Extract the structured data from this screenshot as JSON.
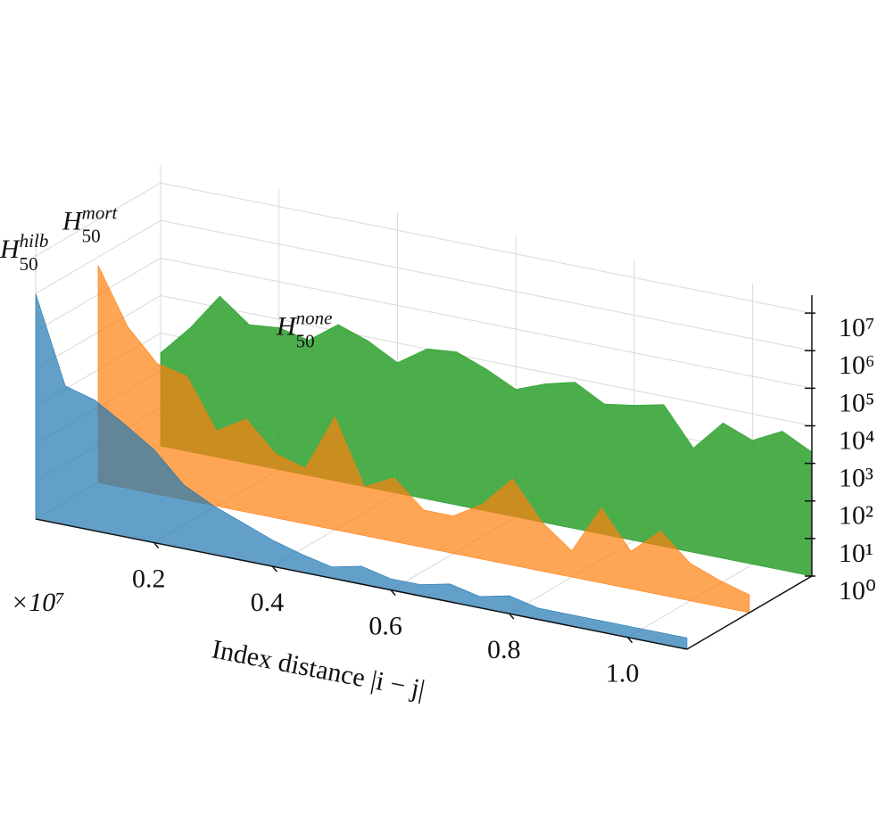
{
  "chart_data": {
    "type": "area3d",
    "x_label": "Index distance |i − j|",
    "x_offset_label": "×10⁷",
    "x": [
      0,
      0.05,
      0.1,
      0.15,
      0.2,
      0.25,
      0.3,
      0.35,
      0.4,
      0.45,
      0.5,
      0.55,
      0.6,
      0.65,
      0.7,
      0.75,
      0.8,
      0.85,
      0.9,
      0.95,
      1.0,
      1.05,
      1.1
    ],
    "series": [
      {
        "name": "H",
        "subscript": "50",
        "superscript": "hilb",
        "color": "#1f77b4",
        "values": [
          1000000,
          5000,
          3000,
          1000,
          300,
          50,
          20,
          10,
          5,
          3,
          2,
          3,
          2,
          2,
          3,
          2,
          3,
          2,
          2,
          2,
          2,
          2,
          2
        ]
      },
      {
        "name": "H",
        "subscript": "50",
        "superscript": "mort",
        "color": "#ff7f0e",
        "values": [
          600000,
          20000,
          3000,
          2000,
          100,
          300,
          50,
          30,
          1000,
          20,
          50,
          10,
          10,
          30,
          200,
          20,
          5,
          100,
          10,
          50,
          10,
          5,
          3
        ]
      },
      {
        "name": "H",
        "subscript": "50",
        "superscript": "none",
        "color": "#2ca02c",
        "values": [
          300,
          2000,
          20000,
          5000,
          6000,
          4000,
          15000,
          8000,
          3000,
          10000,
          12000,
          6000,
          2500,
          5000,
          8000,
          3000,
          4000,
          6000,
          600,
          4000,
          2000,
          5000,
          2000
        ]
      }
    ],
    "xlim": [
      0,
      1.1
    ],
    "xticks": [
      0.2,
      0.4,
      0.6,
      0.8,
      {
        "value": 1,
        "label": "1.0"
      }
    ],
    "ylim": [
      1,
      30000000
    ],
    "log_scale": true,
    "yticks": [
      {
        "value": 1,
        "label": "10⁰"
      },
      {
        "value": 10,
        "label": "10¹"
      },
      {
        "value": 100,
        "label": "10²"
      },
      {
        "value": 1000,
        "label": "10³"
      },
      {
        "value": 10000,
        "label": "10⁴"
      },
      {
        "value": 100000,
        "label": "10⁵"
      },
      {
        "value": 1000000,
        "label": "10⁶"
      },
      {
        "value": 10000000,
        "label": "10⁷"
      }
    ],
    "grid": true
  }
}
